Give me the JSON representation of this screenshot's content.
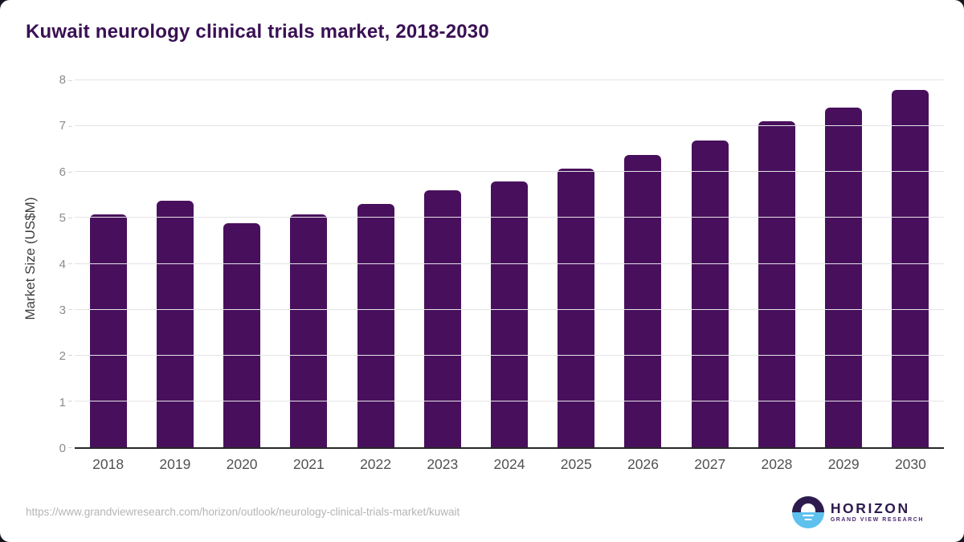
{
  "title": "Kuwait neurology clinical trials market, 2018-2030",
  "chart_data": {
    "type": "bar",
    "categories": [
      "2018",
      "2019",
      "2020",
      "2021",
      "2022",
      "2023",
      "2024",
      "2025",
      "2026",
      "2027",
      "2028",
      "2029",
      "2030"
    ],
    "values": [
      5.08,
      5.38,
      4.89,
      5.08,
      5.3,
      5.6,
      5.79,
      6.08,
      6.38,
      6.69,
      7.1,
      7.4,
      7.79
    ],
    "title": "Kuwait neurology clinical trials market, 2018-2030",
    "xlabel": "",
    "ylabel": "Market Size (US$M)",
    "ylim": [
      0,
      8
    ],
    "yticks": [
      0,
      1,
      2,
      3,
      4,
      5,
      6,
      7,
      8
    ],
    "grid": true,
    "legend": "none",
    "bar_color": "#48105c"
  },
  "footer": {
    "source_url": "https://www.grandviewresearch.com/horizon/outlook/neurology-clinical-trials-market/kuwait",
    "logo": {
      "name": "HORIZON",
      "subtitle": "GRAND VIEW RESEARCH"
    }
  },
  "colors": {
    "title_text": "#3a1054",
    "bar": "#48105c",
    "grid_line": "#e4e4e7",
    "axis_line": "#262626",
    "ytick_text": "#8b8b8b",
    "xtick_text": "#525252",
    "url_text": "#b5b5b5",
    "logo_dark_purple": "#2d1b4e",
    "logo_light_blue": "#5ec1ee"
  }
}
